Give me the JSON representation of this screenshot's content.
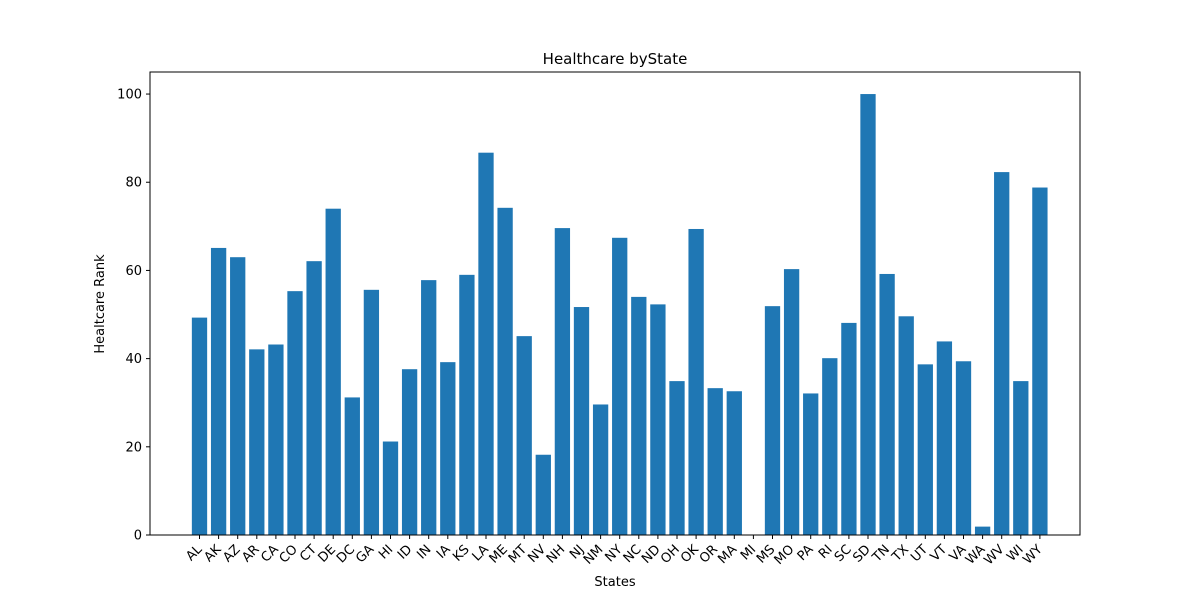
{
  "chart_data": {
    "type": "bar",
    "title": "Healthcare byState",
    "xlabel": "States",
    "ylabel": "Healtcare Rank",
    "ylim": [
      0,
      105
    ],
    "yticks": [
      0,
      20,
      40,
      60,
      80,
      100
    ],
    "grid": false,
    "bar_color": "#1f77b4",
    "categories": [
      "AL",
      "AK",
      "AZ",
      "AR",
      "CA",
      "CO",
      "CT",
      "DE",
      "DC",
      "GA",
      "HI",
      "ID",
      "IN",
      "IA",
      "KS",
      "LA",
      "ME",
      "MT",
      "NV",
      "NH",
      "NJ",
      "NM",
      "NY",
      "NC",
      "ND",
      "OH",
      "OK",
      "OR",
      "MA",
      "MI",
      "MS",
      "MO",
      "PA",
      "RI",
      "SC",
      "SD",
      "TN",
      "TX",
      "UT",
      "VT",
      "VA",
      "WA",
      "WV",
      "WI",
      "WY"
    ],
    "values": [
      49.3,
      65.1,
      63.0,
      42.1,
      43.2,
      55.3,
      62.1,
      74.0,
      31.2,
      55.6,
      21.2,
      37.6,
      57.8,
      39.2,
      59.0,
      86.7,
      74.2,
      45.1,
      18.2,
      69.6,
      51.7,
      29.6,
      67.4,
      54.0,
      52.3,
      34.9,
      69.4,
      33.3,
      32.6,
      0,
      51.9,
      60.3,
      32.1,
      40.1,
      48.1,
      100.0,
      59.2,
      49.6,
      38.7,
      43.9,
      39.4,
      1.9,
      82.3,
      34.9,
      78.8
    ]
  }
}
